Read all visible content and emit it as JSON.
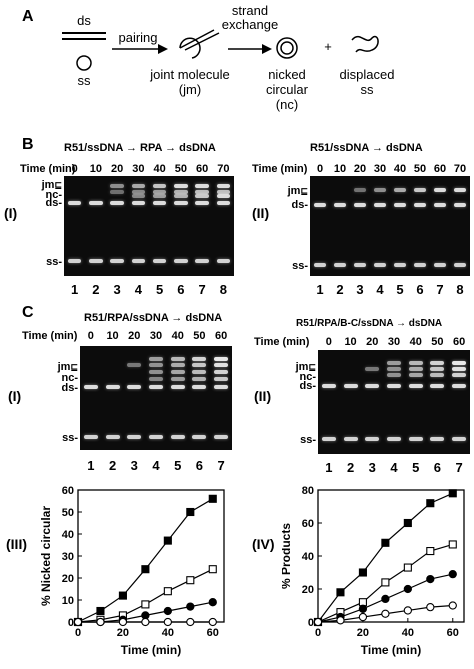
{
  "panel_a": {
    "letter": "A",
    "ds": "ds",
    "ss": "ss",
    "pairing": "pairing",
    "strand_exchange": [
      "strand",
      "exchange"
    ],
    "joint_molecule": [
      "joint molecule",
      "(jm)"
    ],
    "nicked_circular": [
      "nicked",
      "circular",
      "(nc)"
    ],
    "plus": "+",
    "displaced_ss": [
      "displaced",
      "ss"
    ]
  },
  "panel_b": {
    "letter": "B",
    "time_label": "Time (min)",
    "gel1": {
      "roman": "(I)",
      "condition": "R51/ssDNA → RPA → dsDNA",
      "times": [
        "0",
        "10",
        "20",
        "30",
        "40",
        "50",
        "60",
        "70"
      ],
      "lanes": [
        "1",
        "2",
        "3",
        "4",
        "5",
        "6",
        "7",
        "8"
      ],
      "bands": [
        "jm",
        "nc-",
        "ds-",
        "ss-"
      ]
    },
    "gel2": {
      "roman": "(II)",
      "condition": "R51/ssDNA → dsDNA",
      "times": [
        "0",
        "10",
        "20",
        "30",
        "40",
        "50",
        "60",
        "70"
      ],
      "lanes": [
        "1",
        "2",
        "3",
        "4",
        "5",
        "6",
        "7",
        "8"
      ],
      "bands": [
        "jm",
        "ds-",
        "ss-"
      ]
    }
  },
  "panel_c": {
    "letter": "C",
    "time_label": "Time (min)",
    "gel1": {
      "roman": "(I)",
      "condition": "R51/RPA/ssDNA → dsDNA",
      "times": [
        "0",
        "10",
        "20",
        "30",
        "40",
        "50",
        "60"
      ],
      "lanes": [
        "1",
        "2",
        "3",
        "4",
        "5",
        "6",
        "7"
      ],
      "bands": [
        "jm",
        "nc-",
        "ds-",
        "ss-"
      ]
    },
    "gel2": {
      "roman": "(II)",
      "condition": "R51/RPA/B-C/ssDNA → dsDNA",
      "times": [
        "0",
        "10",
        "20",
        "30",
        "40",
        "50",
        "60"
      ],
      "lanes": [
        "1",
        "2",
        "3",
        "4",
        "5",
        "6",
        "7"
      ],
      "bands": [
        "jm",
        "nc-",
        "ds-",
        "ss-"
      ]
    }
  },
  "chart_data": [
    {
      "type": "line",
      "panel": "(III)",
      "xlabel": "Time (min)",
      "ylabel": "% Nicked circular",
      "xlim": [
        0,
        65
      ],
      "ylim": [
        0,
        60
      ],
      "xticks": [
        0,
        20,
        40,
        60
      ],
      "yticks": [
        0,
        10,
        20,
        30,
        40,
        50,
        60
      ],
      "x": [
        0,
        10,
        20,
        30,
        40,
        50,
        60
      ],
      "series": [
        {
          "marker": "filled-square",
          "values": [
            0,
            5,
            12,
            24,
            37,
            50,
            56
          ]
        },
        {
          "marker": "open-square",
          "values": [
            0,
            1,
            3,
            8,
            14,
            19,
            24
          ]
        },
        {
          "marker": "filled-circle",
          "values": [
            0,
            0,
            1,
            3,
            5,
            7,
            9
          ]
        },
        {
          "marker": "open-circle",
          "values": [
            0,
            0,
            0,
            0,
            0,
            0,
            0
          ]
        }
      ]
    },
    {
      "type": "line",
      "panel": "(IV)",
      "xlabel": "Time (min)",
      "ylabel": "% Products",
      "xlim": [
        0,
        65
      ],
      "ylim": [
        0,
        80
      ],
      "xticks": [
        0,
        20,
        40,
        60
      ],
      "yticks": [
        0,
        20,
        40,
        60,
        80
      ],
      "x": [
        0,
        10,
        20,
        30,
        40,
        50,
        60
      ],
      "series": [
        {
          "marker": "filled-square",
          "values": [
            0,
            18,
            30,
            48,
            60,
            72,
            78
          ]
        },
        {
          "marker": "open-square",
          "values": [
            0,
            6,
            12,
            24,
            33,
            43,
            47
          ]
        },
        {
          "marker": "filled-circle",
          "values": [
            0,
            3,
            8,
            14,
            20,
            26,
            29
          ]
        },
        {
          "marker": "open-circle",
          "values": [
            0,
            1,
            3,
            5,
            7,
            9,
            10
          ]
        }
      ]
    }
  ]
}
